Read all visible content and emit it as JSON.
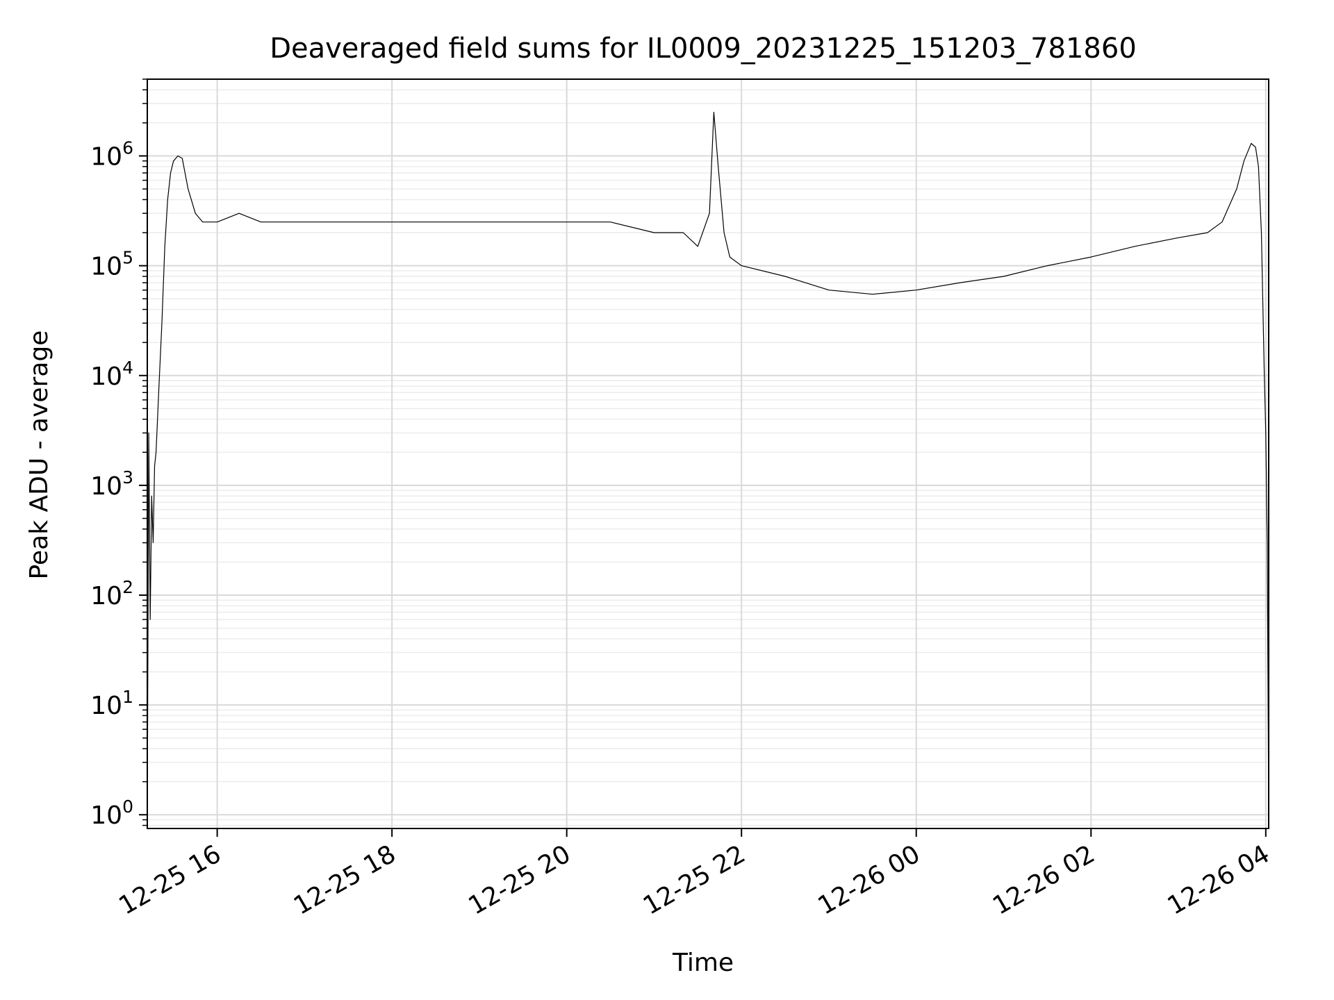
{
  "chart_data": {
    "type": "line",
    "title": "Deaveraged field sums for IL0009_20231225_151203_781860",
    "xlabel": "Time",
    "ylabel": "Peak ADU - average",
    "x_scale": "time",
    "y_scale": "log",
    "xlim": [
      "2023-12-25T15:12",
      "2023-12-26T04:02"
    ],
    "ylim": [
      0.75,
      5000000
    ],
    "x_ticks": [
      {
        "t": "2023-12-25T16:00",
        "label": "12-25 16"
      },
      {
        "t": "2023-12-25T18:00",
        "label": "12-25 18"
      },
      {
        "t": "2023-12-25T20:00",
        "label": "12-25 20"
      },
      {
        "t": "2023-12-25T22:00",
        "label": "12-25 22"
      },
      {
        "t": "2023-12-26T00:00",
        "label": "12-26 00"
      },
      {
        "t": "2023-12-26T02:00",
        "label": "12-26 02"
      },
      {
        "t": "2023-12-26T04:00",
        "label": "12-26 04"
      }
    ],
    "y_ticks": [
      {
        "v": 1,
        "base": "10",
        "exp": "0"
      },
      {
        "v": 10,
        "base": "10",
        "exp": "1"
      },
      {
        "v": 100,
        "base": "10",
        "exp": "2"
      },
      {
        "v": 1000,
        "base": "10",
        "exp": "3"
      },
      {
        "v": 10000,
        "base": "10",
        "exp": "4"
      },
      {
        "v": 100000,
        "base": "10",
        "exp": "5"
      },
      {
        "v": 1000000,
        "base": "10",
        "exp": "6"
      }
    ],
    "grid": true,
    "line_color": "#000000",
    "series": [
      {
        "x": [
          "2023-12-25T15:12",
          "2023-12-25T15:13",
          "2023-12-25T15:14",
          "2023-12-25T15:15",
          "2023-12-25T15:16",
          "2023-12-25T15:17",
          "2023-12-25T15:18",
          "2023-12-25T15:20",
          "2023-12-25T15:22",
          "2023-12-25T15:24",
          "2023-12-25T15:26",
          "2023-12-25T15:28",
          "2023-12-25T15:30",
          "2023-12-25T15:33",
          "2023-12-25T15:36",
          "2023-12-25T15:40",
          "2023-12-25T15:45",
          "2023-12-25T15:50",
          "2023-12-25T16:00",
          "2023-12-25T16:15",
          "2023-12-25T16:30",
          "2023-12-25T17:00",
          "2023-12-25T17:30",
          "2023-12-25T18:00",
          "2023-12-25T18:30",
          "2023-12-25T19:00",
          "2023-12-25T19:30",
          "2023-12-25T20:00",
          "2023-12-25T20:30",
          "2023-12-25T21:00",
          "2023-12-25T21:20",
          "2023-12-25T21:30",
          "2023-12-25T21:38",
          "2023-12-25T21:41",
          "2023-12-25T21:44",
          "2023-12-25T21:48",
          "2023-12-25T21:52",
          "2023-12-25T22:00",
          "2023-12-25T22:30",
          "2023-12-25T23:00",
          "2023-12-25T23:30",
          "2023-12-26T00:00",
          "2023-12-26T00:30",
          "2023-12-26T01:00",
          "2023-12-26T01:30",
          "2023-12-26T02:00",
          "2023-12-26T02:30",
          "2023-12-26T03:00",
          "2023-12-26T03:20",
          "2023-12-26T03:30",
          "2023-12-26T03:40",
          "2023-12-26T03:45",
          "2023-12-26T03:50",
          "2023-12-26T03:53",
          "2023-12-26T03:55",
          "2023-12-26T03:57",
          "2023-12-26T03:59",
          "2023-12-26T04:00",
          "2023-12-26T04:01",
          "2023-12-26T04:02"
        ],
        "y": [
          1,
          3000,
          60,
          800,
          300,
          1500,
          2000,
          8000,
          30000,
          150000,
          400000,
          700000,
          900000,
          1000000,
          950000,
          500000,
          300000,
          250000,
          250000,
          300000,
          250000,
          250000,
          250000,
          250000,
          250000,
          250000,
          250000,
          250000,
          250000,
          200000,
          200000,
          150000,
          300000,
          2500000,
          800000,
          200000,
          120000,
          100000,
          80000,
          60000,
          55000,
          60000,
          70000,
          80000,
          100000,
          120000,
          150000,
          180000,
          200000,
          250000,
          500000,
          900000,
          1300000,
          1200000,
          800000,
          200000,
          10000,
          3000,
          300,
          1
        ]
      }
    ]
  }
}
